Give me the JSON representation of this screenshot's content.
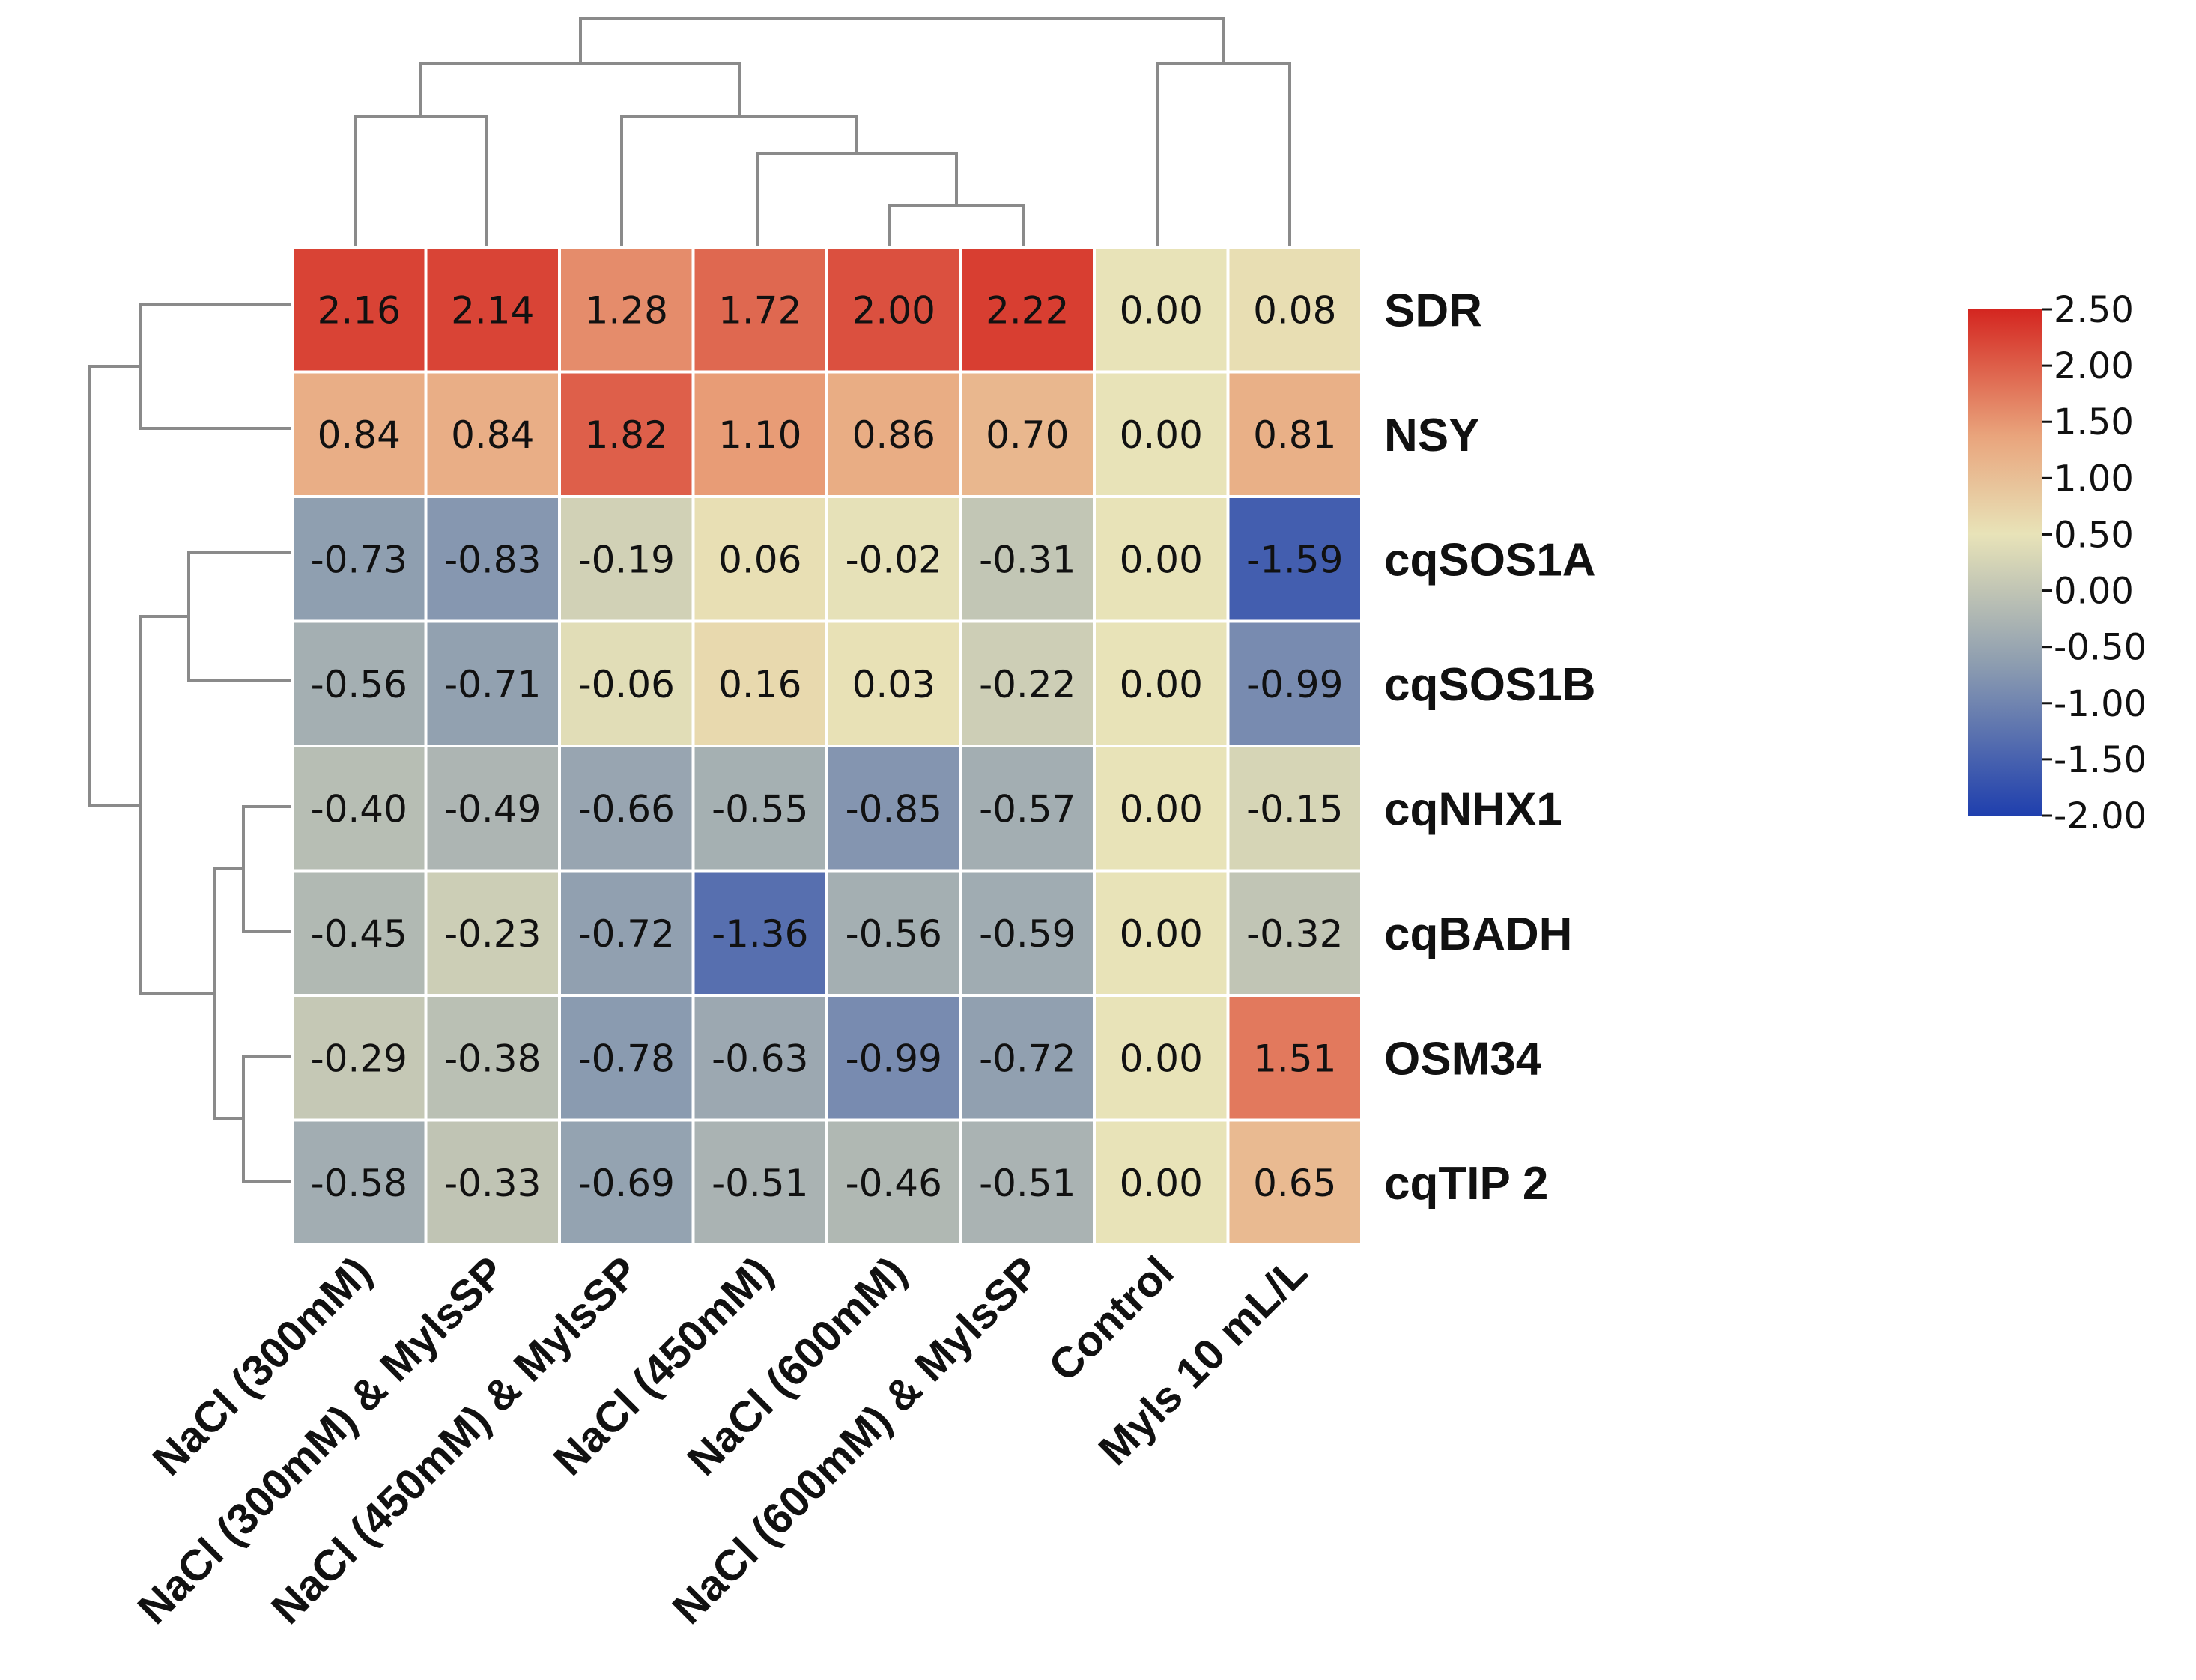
{
  "chart_data": {
    "type": "heatmap",
    "title": "",
    "columns": [
      "NaCl (300mM)",
      "NaCl (300mM) & MylsSP",
      "NaCl (450mM) & MylsSP",
      "NaCl (450mM)",
      "NaCl (600mM)",
      "NaCl (600mM) & MylsSP",
      "Control",
      "Myls 10 mL/L"
    ],
    "rows": [
      "SDR",
      "NSY",
      "cqSOS1A",
      "cqSOS1B",
      "cqNHX1",
      "cqBADH",
      "OSM34",
      "cqTIP 2"
    ],
    "values": [
      [
        "2.16",
        "2.14",
        "1.28",
        "1.72",
        "2.00",
        "2.22",
        "0.00",
        "0.08"
      ],
      [
        "0.84",
        "0.84",
        "1.82",
        "1.10",
        "0.86",
        "0.70",
        "0.00",
        "0.81"
      ],
      [
        "-0.73",
        "-0.83",
        "-0.19",
        "0.06",
        "-0.02",
        "-0.31",
        "0.00",
        "-1.59"
      ],
      [
        "-0.56",
        "-0.71",
        "-0.06",
        "0.16",
        "0.03",
        "-0.22",
        "0.00",
        "-0.99"
      ],
      [
        "-0.40",
        "-0.49",
        "-0.66",
        "-0.55",
        "-0.85",
        "-0.57",
        "0.00",
        "-0.15"
      ],
      [
        "-0.45",
        "-0.23",
        "-0.72",
        "-1.36",
        "-0.56",
        "-0.59",
        "0.00",
        "-0.32"
      ],
      [
        "-0.29",
        "-0.38",
        "-0.78",
        "-0.63",
        "-0.99",
        "-0.72",
        "0.00",
        "1.51"
      ],
      [
        "-0.58",
        "-0.33",
        "-0.69",
        "-0.51",
        "-0.46",
        "-0.51",
        "0.00",
        "0.65"
      ]
    ],
    "colorbar": {
      "min": -2.0,
      "max": 2.5,
      "ticks": [
        "2.50",
        "2.00",
        "1.50",
        "1.00",
        "0.50",
        "0.00",
        "-0.50",
        "-1.00",
        "-1.50",
        "-2.00"
      ]
    },
    "colors": {
      "low": "#1f3fae",
      "mid_low": "#8d9db0",
      "mid": "#e8e3b8",
      "mid_high": "#e9a47c",
      "high": "#d42620"
    },
    "row_dendrogram": true,
    "column_dendrogram": true
  }
}
